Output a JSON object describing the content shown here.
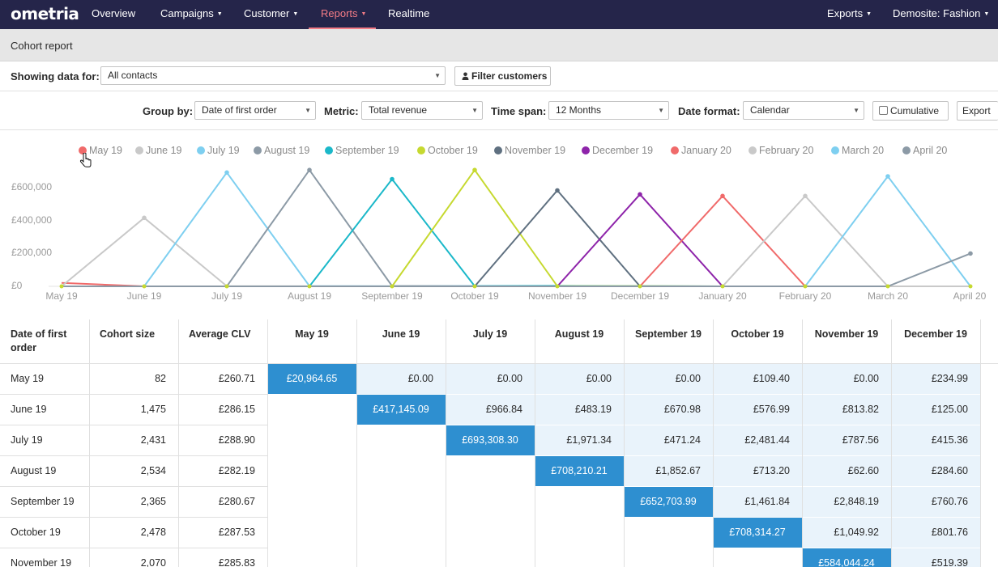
{
  "nav": {
    "logo": "ometria",
    "items": [
      {
        "label": "Overview"
      },
      {
        "label": "Campaigns"
      },
      {
        "label": "Customer"
      },
      {
        "label": "Reports"
      },
      {
        "label": "Realtime"
      }
    ],
    "right": [
      {
        "label": "Exports"
      },
      {
        "label": "Demosite: Fashion"
      }
    ]
  },
  "page_title": "Cohort report",
  "filters": {
    "showing_label": "Showing data for:",
    "showing_value": "All contacts",
    "filter_button": "Filter customers",
    "group_by_label": "Group by:",
    "group_by_value": "Date of first order",
    "metric_label": "Metric:",
    "metric_value": "Total revenue",
    "time_span_label": "Time span:",
    "time_span_value": "12 Months",
    "date_format_label": "Date format:",
    "date_format_value": "Calendar",
    "cumulative_label": "Cumulative",
    "export_label": "Export"
  },
  "colors": {
    "nav_bg": "#25254a",
    "accent": "#f47c86",
    "highlight_cell": "#2e8fd0",
    "shaded_cell": "#e9f3fb"
  },
  "chart_data": {
    "type": "line",
    "categories": [
      "May 19",
      "June 19",
      "July 19",
      "August 19",
      "September 19",
      "October 19",
      "November 19",
      "December 19",
      "January 20",
      "February 20",
      "March 20",
      "April 20"
    ],
    "yticks": [
      "£0",
      "£200,000",
      "£400,000",
      "£600,000"
    ],
    "ylim": [
      0,
      720000
    ],
    "series": [
      {
        "name": "May 19",
        "color": "#f06a6a",
        "values": [
          20965,
          0,
          0,
          0,
          0,
          109,
          0,
          235,
          0,
          0,
          0,
          0
        ]
      },
      {
        "name": "June 19",
        "color": "#c9c9c9",
        "values": [
          0,
          417145,
          967,
          483,
          671,
          577,
          814,
          125,
          0,
          0,
          0,
          0
        ]
      },
      {
        "name": "July 19",
        "color": "#7ecff0",
        "values": [
          0,
          0,
          693308,
          1971,
          471,
          2481,
          788,
          415,
          0,
          0,
          0,
          0
        ]
      },
      {
        "name": "August 19",
        "color": "#8c9aa6",
        "values": [
          0,
          0,
          0,
          708210,
          1853,
          713,
          63,
          285,
          0,
          0,
          0,
          0
        ]
      },
      {
        "name": "September 19",
        "color": "#1bb8c9",
        "values": [
          0,
          0,
          0,
          0,
          652704,
          1462,
          2848,
          761,
          0,
          0,
          0,
          0
        ]
      },
      {
        "name": "October 19",
        "color": "#c6d930",
        "values": [
          0,
          0,
          0,
          0,
          0,
          708314,
          1050,
          802,
          0,
          0,
          0,
          0
        ]
      },
      {
        "name": "November 19",
        "color": "#5f7080",
        "values": [
          0,
          0,
          0,
          0,
          0,
          0,
          584044,
          519,
          0,
          0,
          0,
          0
        ]
      },
      {
        "name": "December 19",
        "color": "#8e24aa",
        "values": [
          0,
          0,
          0,
          0,
          0,
          0,
          0,
          560000,
          0,
          0,
          0,
          0
        ]
      },
      {
        "name": "January 20",
        "color": "#f06a6a",
        "values": [
          0,
          0,
          0,
          0,
          0,
          0,
          0,
          0,
          550000,
          0,
          0,
          0
        ]
      },
      {
        "name": "February 20",
        "color": "#c9c9c9",
        "values": [
          0,
          0,
          0,
          0,
          0,
          0,
          0,
          0,
          0,
          550000,
          0,
          0
        ]
      },
      {
        "name": "March 20",
        "color": "#7ecff0",
        "values": [
          0,
          0,
          0,
          0,
          0,
          0,
          0,
          0,
          0,
          0,
          670000,
          0
        ]
      },
      {
        "name": "April 20",
        "color": "#8c9aa6",
        "values": [
          0,
          0,
          0,
          0,
          0,
          0,
          0,
          0,
          0,
          0,
          0,
          200000
        ]
      }
    ]
  },
  "table": {
    "headers": [
      "Date of first order",
      "Cohort size",
      "Average CLV",
      "May 19",
      "June 19",
      "July 19",
      "August 19",
      "September 19",
      "October 19",
      "November 19",
      "December 19"
    ],
    "rows": [
      {
        "label": "May 19",
        "size": "82",
        "clv": "£260.71",
        "values": [
          "£20,964.65",
          "£0.00",
          "£0.00",
          "£0.00",
          "£0.00",
          "£109.40",
          "£0.00",
          "£234.99"
        ]
      },
      {
        "label": "June 19",
        "size": "1,475",
        "clv": "£286.15",
        "values": [
          "",
          "£417,145.09",
          "£966.84",
          "£483.19",
          "£670.98",
          "£576.99",
          "£813.82",
          "£125.00"
        ]
      },
      {
        "label": "July 19",
        "size": "2,431",
        "clv": "£288.90",
        "values": [
          "",
          "",
          "£693,308.30",
          "£1,971.34",
          "£471.24",
          "£2,481.44",
          "£787.56",
          "£415.36"
        ]
      },
      {
        "label": "August 19",
        "size": "2,534",
        "clv": "£282.19",
        "values": [
          "",
          "",
          "",
          "£708,210.21",
          "£1,852.67",
          "£713.20",
          "£62.60",
          "£284.60"
        ]
      },
      {
        "label": "September 19",
        "size": "2,365",
        "clv": "£280.67",
        "values": [
          "",
          "",
          "",
          "",
          "£652,703.99",
          "£1,461.84",
          "£2,848.19",
          "£760.76"
        ]
      },
      {
        "label": "October 19",
        "size": "2,478",
        "clv": "£287.53",
        "values": [
          "",
          "",
          "",
          "",
          "",
          "£708,314.27",
          "£1,049.92",
          "£801.76"
        ]
      },
      {
        "label": "November 19",
        "size": "2,070",
        "clv": "£285.83",
        "values": [
          "",
          "",
          "",
          "",
          "",
          "",
          "£584,044.24",
          "£519.39"
        ]
      }
    ]
  }
}
